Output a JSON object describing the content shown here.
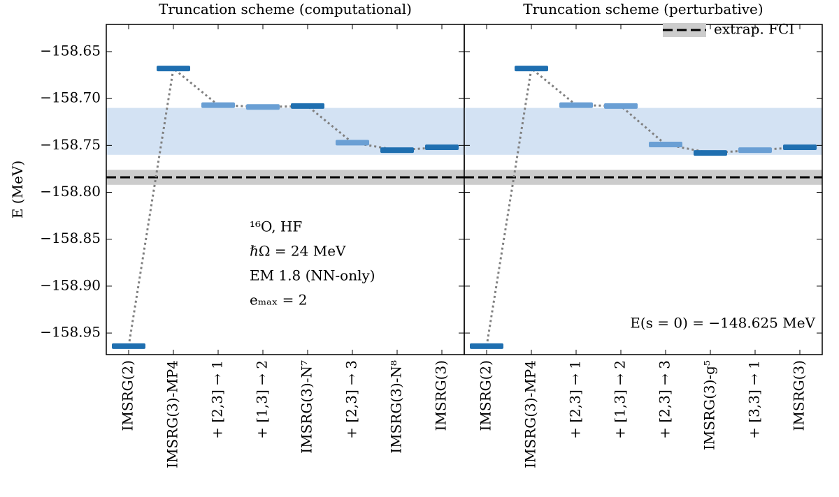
{
  "chart_data": [
    {
      "type": "level",
      "title": "Truncation scheme (computational)",
      "ylabel": "E (MeV)",
      "categories": [
        "IMSRG(2)",
        "IMSRG(3)-MP4",
        "+ [2,3] → 1",
        "+ [1,3] → 2",
        "IMSRG(3)-N⁷",
        "+ [2,3] → 3",
        "IMSRG(3)-N⁸",
        "IMSRG(3)"
      ],
      "values": [
        -158.964,
        -158.668,
        -158.707,
        -158.709,
        -158.708,
        -158.747,
        -158.755,
        -158.752
      ],
      "colors": [
        "#1f6fb0",
        "#1f6fb0",
        "#6a9fd4",
        "#6a9fd4",
        "#1f6fb0",
        "#6a9fd4",
        "#1f6fb0",
        "#1f6fb0"
      ],
      "line_color": "#808080",
      "band": {
        "range": [
          -158.71,
          -158.76
        ],
        "color": "#d3e2f3"
      },
      "reference": {
        "value": -158.784,
        "band": [
          -158.776,
          -158.792
        ],
        "color": "#000000",
        "band_color": "#cccccc"
      },
      "annotations": [
        "¹⁶O, HF",
        "ℏΩ = 24 MeV",
        "EM 1.8 (NN-only)",
        "eₘₐₓ = 2"
      ],
      "ylim": [
        -158.973,
        -158.621
      ],
      "yticks": [
        {
          "value": -158.65,
          "label": "−158.65"
        },
        {
          "value": -158.7,
          "label": "−158.70"
        },
        {
          "value": -158.75,
          "label": "−158.75"
        },
        {
          "value": -158.8,
          "label": "−158.80"
        },
        {
          "value": -158.85,
          "label": "−158.85"
        },
        {
          "value": -158.9,
          "label": "−158.90"
        },
        {
          "value": -158.95,
          "label": "−158.95"
        }
      ],
      "show_ytick_labels": true
    },
    {
      "type": "level",
      "title": "Truncation scheme (perturbative)",
      "categories": [
        "IMSRG(2)",
        "IMSRG(3)-MP4",
        "+ [2,3] → 1",
        "+ [1,3] → 2",
        "+ [2,3] → 3",
        "IMSRG(3)-g⁵",
        "+ [3,3] → 1",
        "IMSRG(3)"
      ],
      "values": [
        -158.964,
        -158.668,
        -158.707,
        -158.708,
        -158.749,
        -158.758,
        -158.755,
        -158.752
      ],
      "colors": [
        "#1f6fb0",
        "#1f6fb0",
        "#6a9fd4",
        "#6a9fd4",
        "#6a9fd4",
        "#1f6fb0",
        "#6a9fd4",
        "#1f6fb0"
      ],
      "line_color": "#808080",
      "band": {
        "range": [
          -158.71,
          -158.76
        ],
        "color": "#d3e2f3"
      },
      "reference": {
        "name": "extrap. FCI",
        "value": -158.784,
        "band": [
          -158.776,
          -158.792
        ],
        "color": "#000000",
        "band_color": "#cccccc"
      },
      "legend": "upper right",
      "annotations": [
        "E(s = 0) = −148.625 MeV"
      ],
      "ylim": [
        -158.973,
        -158.621
      ],
      "yticks": [
        {
          "value": -158.65,
          "label": "−158.65"
        },
        {
          "value": -158.7,
          "label": "−158.70"
        },
        {
          "value": -158.75,
          "label": "−158.75"
        },
        {
          "value": -158.8,
          "label": "−158.80"
        },
        {
          "value": -158.85,
          "label": "−158.85"
        },
        {
          "value": -158.9,
          "label": "−158.90"
        },
        {
          "value": -158.95,
          "label": "−158.95"
        }
      ],
      "show_ytick_labels": false
    }
  ]
}
